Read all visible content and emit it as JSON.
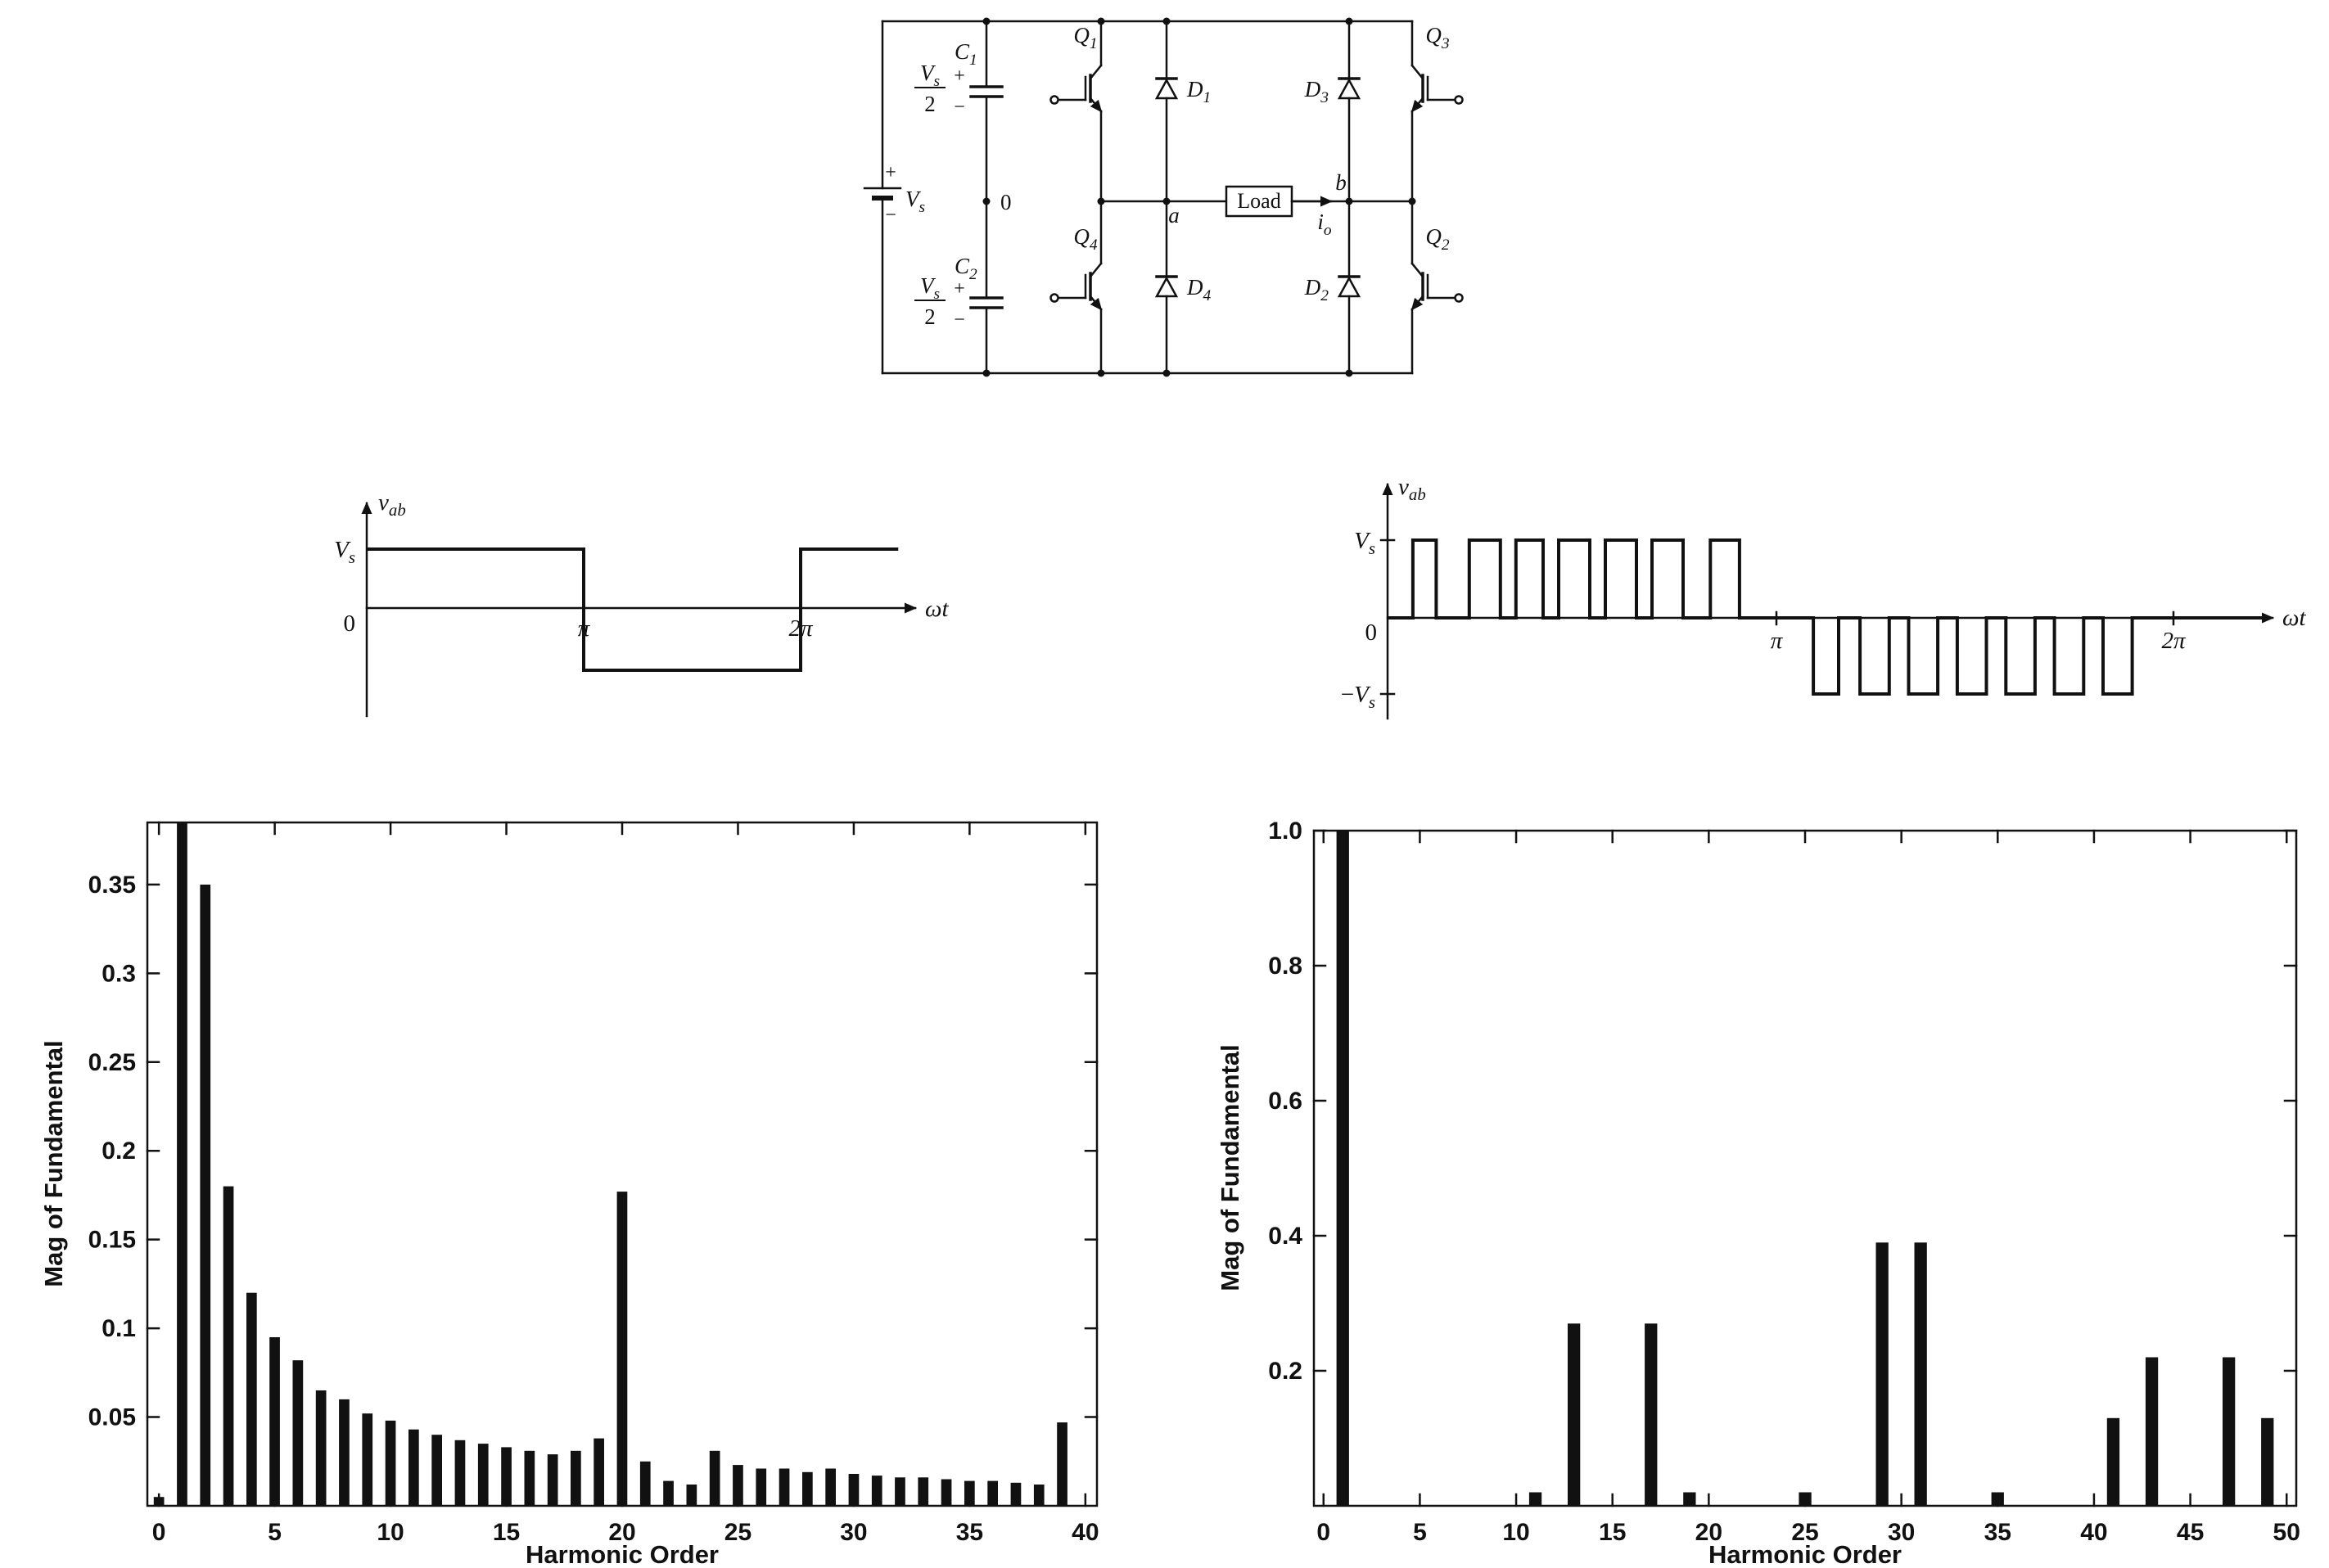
{
  "figure": {
    "background": "#ffffff",
    "ink": "#111111"
  },
  "circuit": {
    "labels": {
      "plus": "+",
      "minus": "−",
      "vs": {
        "base": "V",
        "sub": "s"
      },
      "vs_half": {
        "num_base": "V",
        "num_sub": "s",
        "den": "2"
      },
      "node_zero": "0",
      "c1": {
        "base": "C",
        "sub": "1"
      },
      "c2": {
        "base": "C",
        "sub": "2"
      },
      "q1": {
        "base": "Q",
        "sub": "1"
      },
      "q2": {
        "base": "Q",
        "sub": "2"
      },
      "q3": {
        "base": "Q",
        "sub": "3"
      },
      "q4": {
        "base": "Q",
        "sub": "4"
      },
      "d1": {
        "base": "D",
        "sub": "1"
      },
      "d2": {
        "base": "D",
        "sub": "2"
      },
      "d3": {
        "base": "D",
        "sub": "3"
      },
      "d4": {
        "base": "D",
        "sub": "4"
      },
      "node_a": "a",
      "node_b": "b",
      "load": "Load",
      "io": {
        "base": "i",
        "sub": "o"
      }
    }
  },
  "chart_data": [
    {
      "id": "square-wave-output-voltage",
      "type": "line",
      "ylabel": {
        "base": "v",
        "sub": "ab"
      },
      "xlabel": "ωt",
      "x_unit": "π radians",
      "origin_label": "0",
      "level_labels": {
        "high": {
          "base": "V",
          "sub": "s"
        }
      },
      "xticks": [
        "π",
        "2π"
      ],
      "segments": [
        {
          "from": 0,
          "to": 1,
          "level": 1
        },
        {
          "from": 1,
          "to": 2,
          "level": -1
        },
        {
          "from": 2,
          "to": 2.45,
          "level": 1
        }
      ]
    },
    {
      "id": "spwm-output-voltage",
      "type": "line",
      "ylabel": {
        "base": "v",
        "sub": "ab"
      },
      "xlabel": "ωt",
      "x_unit": "π radians",
      "origin_label": "0",
      "level_labels": {
        "high": {
          "base": "V",
          "sub": "s"
        },
        "low": {
          "prefix": "−",
          "base": "V",
          "sub": "s"
        }
      },
      "xticks": [
        "π",
        "2π"
      ],
      "positive_pulses": [
        [
          0.065,
          0.125
        ],
        [
          0.21,
          0.29
        ],
        [
          0.33,
          0.4
        ],
        [
          0.44,
          0.52
        ],
        [
          0.56,
          0.64
        ],
        [
          0.68,
          0.76
        ],
        [
          0.83,
          0.905
        ]
      ],
      "negative_pulses": [
        [
          1.095,
          1.16
        ],
        [
          1.215,
          1.29
        ],
        [
          1.34,
          1.415
        ],
        [
          1.465,
          1.54
        ],
        [
          1.59,
          1.665
        ],
        [
          1.715,
          1.79
        ],
        [
          1.84,
          1.915
        ]
      ]
    },
    {
      "id": "square-wave-harmonic-spectrum",
      "type": "bar",
      "xlabel": "Harmonic Order",
      "ylabel": "Mag of Fundamental",
      "xlim": [
        -0.5,
        40.5
      ],
      "ylim": [
        0,
        0.385
      ],
      "grid": false,
      "legend": "none",
      "xticks": [
        0,
        5,
        10,
        15,
        20,
        25,
        30,
        35,
        40
      ],
      "yticks": [
        {
          "value": 0.05,
          "label": "0.05"
        },
        {
          "value": 0.1,
          "label": "0.1"
        },
        {
          "value": 0.15,
          "label": "0.15"
        },
        {
          "value": 0.2,
          "label": "0.2"
        },
        {
          "value": 0.25,
          "label": "0.25"
        },
        {
          "value": 0.3,
          "label": "0.3"
        },
        {
          "value": 0.35,
          "label": "0.35"
        }
      ],
      "bar_rel_width": 0.45,
      "clipped_note": "fundamental bar (n=1) exceeds axis limit and is clipped",
      "points": [
        [
          0,
          0.005
        ],
        [
          1,
          1.0
        ],
        [
          2,
          0.35
        ],
        [
          3,
          0.18
        ],
        [
          4,
          0.12
        ],
        [
          5,
          0.095
        ],
        [
          6,
          0.082
        ],
        [
          7,
          0.065
        ],
        [
          8,
          0.06
        ],
        [
          9,
          0.052
        ],
        [
          10,
          0.048
        ],
        [
          11,
          0.043
        ],
        [
          12,
          0.04
        ],
        [
          13,
          0.037
        ],
        [
          14,
          0.035
        ],
        [
          15,
          0.033
        ],
        [
          16,
          0.031
        ],
        [
          17,
          0.029
        ],
        [
          18,
          0.031
        ],
        [
          19,
          0.038
        ],
        [
          20,
          0.177
        ],
        [
          21,
          0.025
        ],
        [
          22,
          0.014
        ],
        [
          23,
          0.012
        ],
        [
          24,
          0.031
        ],
        [
          25,
          0.023
        ],
        [
          26,
          0.021
        ],
        [
          27,
          0.021
        ],
        [
          28,
          0.019
        ],
        [
          29,
          0.021
        ],
        [
          30,
          0.018
        ],
        [
          31,
          0.017
        ],
        [
          32,
          0.016
        ],
        [
          33,
          0.016
        ],
        [
          34,
          0.015
        ],
        [
          35,
          0.014
        ],
        [
          36,
          0.014
        ],
        [
          37,
          0.013
        ],
        [
          38,
          0.012
        ],
        [
          39,
          0.047
        ]
      ]
    },
    {
      "id": "spwm-harmonic-spectrum",
      "type": "bar",
      "xlabel": "Harmonic Order",
      "ylabel": "Mag of Fundamental",
      "xlim": [
        -0.5,
        50.5
      ],
      "ylim": [
        0,
        1.0
      ],
      "grid": false,
      "legend": "none",
      "xticks": [
        0,
        5,
        10,
        15,
        20,
        25,
        30,
        35,
        40,
        45,
        50
      ],
      "yticks": [
        {
          "value": 0.2,
          "label": "0.2"
        },
        {
          "value": 0.4,
          "label": "0.4"
        },
        {
          "value": 0.6,
          "label": "0.6"
        },
        {
          "value": 0.8,
          "label": "0.8"
        },
        {
          "value": 1.0,
          "label": "1.0"
        }
      ],
      "bar_rel_width": 0.65,
      "points": [
        [
          1,
          1.0
        ],
        [
          11,
          0.02
        ],
        [
          13,
          0.27
        ],
        [
          17,
          0.27
        ],
        [
          19,
          0.02
        ],
        [
          25,
          0.02
        ],
        [
          29,
          0.39
        ],
        [
          31,
          0.39
        ],
        [
          35,
          0.02
        ],
        [
          41,
          0.13
        ],
        [
          43,
          0.22
        ],
        [
          47,
          0.22
        ],
        [
          49,
          0.13
        ]
      ]
    }
  ]
}
